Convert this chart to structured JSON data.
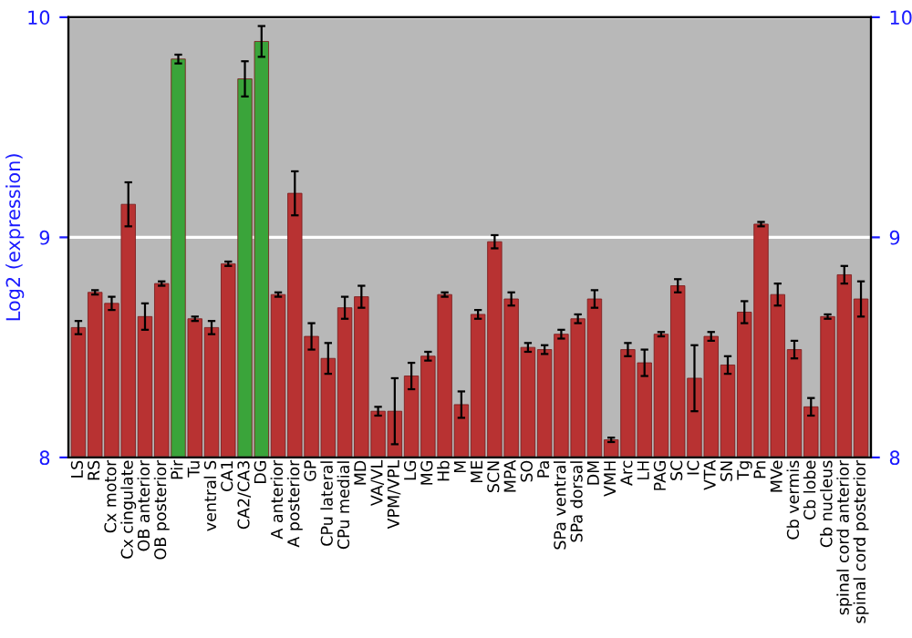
{
  "chart_data": {
    "type": "bar",
    "ylabel": "Log2 (expression)",
    "categories": [
      "LS",
      "RS",
      "Cx motor",
      "Cx cingulate",
      "OB anterior",
      "OB posterior",
      "Pir",
      "Tu",
      "ventral S",
      "CA1",
      "CA2/CA3",
      "DG",
      "A anterior",
      "A posterior",
      "GP",
      "CPu lateral",
      "CPu medial",
      "MD",
      "VA/VL",
      "VPM/VPL",
      "LG",
      "MG",
      "Hb",
      "M",
      "ME",
      "SCN",
      "MPA",
      "SO",
      "Pa",
      "SPa ventral",
      "SPa dorsal",
      "DM",
      "VMH",
      "Arc",
      "LH",
      "PAG",
      "SC",
      "IC",
      "VTA",
      "SN",
      "Tg",
      "Pn",
      "MVe",
      "Cb vermis",
      "Cb lobe",
      "Cb nucleus",
      "spinal cord anterior",
      "spinal cord posterior"
    ],
    "values": [
      8.59,
      8.75,
      8.7,
      9.15,
      8.64,
      8.79,
      9.81,
      8.63,
      8.59,
      8.88,
      9.72,
      9.89,
      8.74,
      9.2,
      8.55,
      8.45,
      8.68,
      8.73,
      8.21,
      8.21,
      8.37,
      8.46,
      8.74,
      8.24,
      8.65,
      8.98,
      8.72,
      8.5,
      8.49,
      8.56,
      8.63,
      8.72,
      8.08,
      8.49,
      8.43,
      8.56,
      8.78,
      8.36,
      8.55,
      8.42,
      8.66,
      9.06,
      8.74,
      8.49,
      8.23,
      8.64,
      8.83,
      8.72
    ],
    "errors": [
      0.03,
      0.01,
      0.03,
      0.1,
      0.06,
      0.01,
      0.02,
      0.01,
      0.03,
      0.01,
      0.08,
      0.07,
      0.01,
      0.1,
      0.06,
      0.07,
      0.05,
      0.05,
      0.02,
      0.15,
      0.06,
      0.02,
      0.01,
      0.06,
      0.02,
      0.03,
      0.03,
      0.02,
      0.02,
      0.02,
      0.02,
      0.04,
      0.01,
      0.03,
      0.06,
      0.01,
      0.03,
      0.15,
      0.02,
      0.04,
      0.05,
      0.01,
      0.05,
      0.04,
      0.04,
      0.01,
      0.04,
      0.08
    ],
    "colors": [
      "#b83232",
      "#b83232",
      "#b83232",
      "#b83232",
      "#b83232",
      "#b83232",
      "#3aa43a",
      "#b83232",
      "#b83232",
      "#b83232",
      "#3aa43a",
      "#3aa43a",
      "#b83232",
      "#b83232",
      "#b83232",
      "#b83232",
      "#b83232",
      "#b83232",
      "#b83232",
      "#b83232",
      "#b83232",
      "#b83232",
      "#b83232",
      "#b83232",
      "#b83232",
      "#b83232",
      "#b83232",
      "#b83232",
      "#b83232",
      "#b83232",
      "#b83232",
      "#b83232",
      "#b83232",
      "#b83232",
      "#b83232",
      "#b83232",
      "#b83232",
      "#b83232",
      "#b83232",
      "#b83232",
      "#b83232",
      "#b83232",
      "#b83232",
      "#b83232",
      "#b83232",
      "#b83232",
      "#b83232",
      "#b83232"
    ],
    "ylim": [
      8,
      10
    ],
    "yticks": [
      8,
      9,
      10
    ],
    "y2lim": [
      8,
      10
    ],
    "y2ticks": [
      8,
      9,
      10
    ],
    "grid": "y"
  }
}
